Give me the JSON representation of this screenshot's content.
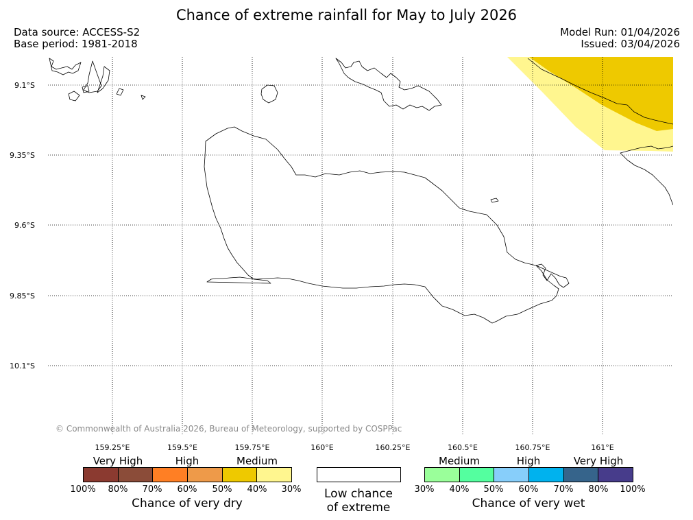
{
  "title": "Chance of extreme rainfall for May to July 2026",
  "data_source": "Data source: ACCESS-S2",
  "base_period": "Base period: 1981-2018",
  "model_run": "Model Run: 01/04/2026",
  "issued": "Issued: 03/04/2026",
  "copyright": "© Commonwealth of Australia 2026, Bureau of Meteorology, supported by COSPPac",
  "map": {
    "lat_labels": [
      "9.1°S",
      "9.35°S",
      "9.6°S",
      "9.85°S",
      "10.1°S"
    ],
    "lon_labels": [
      "159.25°E",
      "159.5°E",
      "159.75°E",
      "160°E",
      "160.25°E",
      "160.5°E",
      "160.75°E",
      "161°E"
    ],
    "shading": [
      {
        "category": "40-50% very dry",
        "color": "#eec900"
      },
      {
        "category": "30-40% very dry",
        "color": "#fff68f"
      }
    ]
  },
  "legend": {
    "dry": {
      "categories": [
        "Very High",
        "High",
        "Medium"
      ],
      "colors": [
        "#8b3a30",
        "#8b4c39",
        "#ff7f24",
        "#ee9a49",
        "#eec900",
        "#fff68f"
      ],
      "ticks": [
        "100%",
        "80%",
        "70%",
        "60%",
        "50%",
        "40%",
        "30%"
      ],
      "caption": "Chance of very dry"
    },
    "neutral": {
      "caption_line1": "Low chance",
      "caption_line2": "of extreme"
    },
    "wet": {
      "categories": [
        "Medium",
        "High",
        "Very High"
      ],
      "colors": [
        "#9aff9a",
        "#54ff9f",
        "#87cefa",
        "#00b2ee",
        "#36648b",
        "#473c8b"
      ],
      "ticks": [
        "30%",
        "40%",
        "50%",
        "60%",
        "70%",
        "80%",
        "100%"
      ],
      "caption": "Chance of very wet"
    }
  }
}
